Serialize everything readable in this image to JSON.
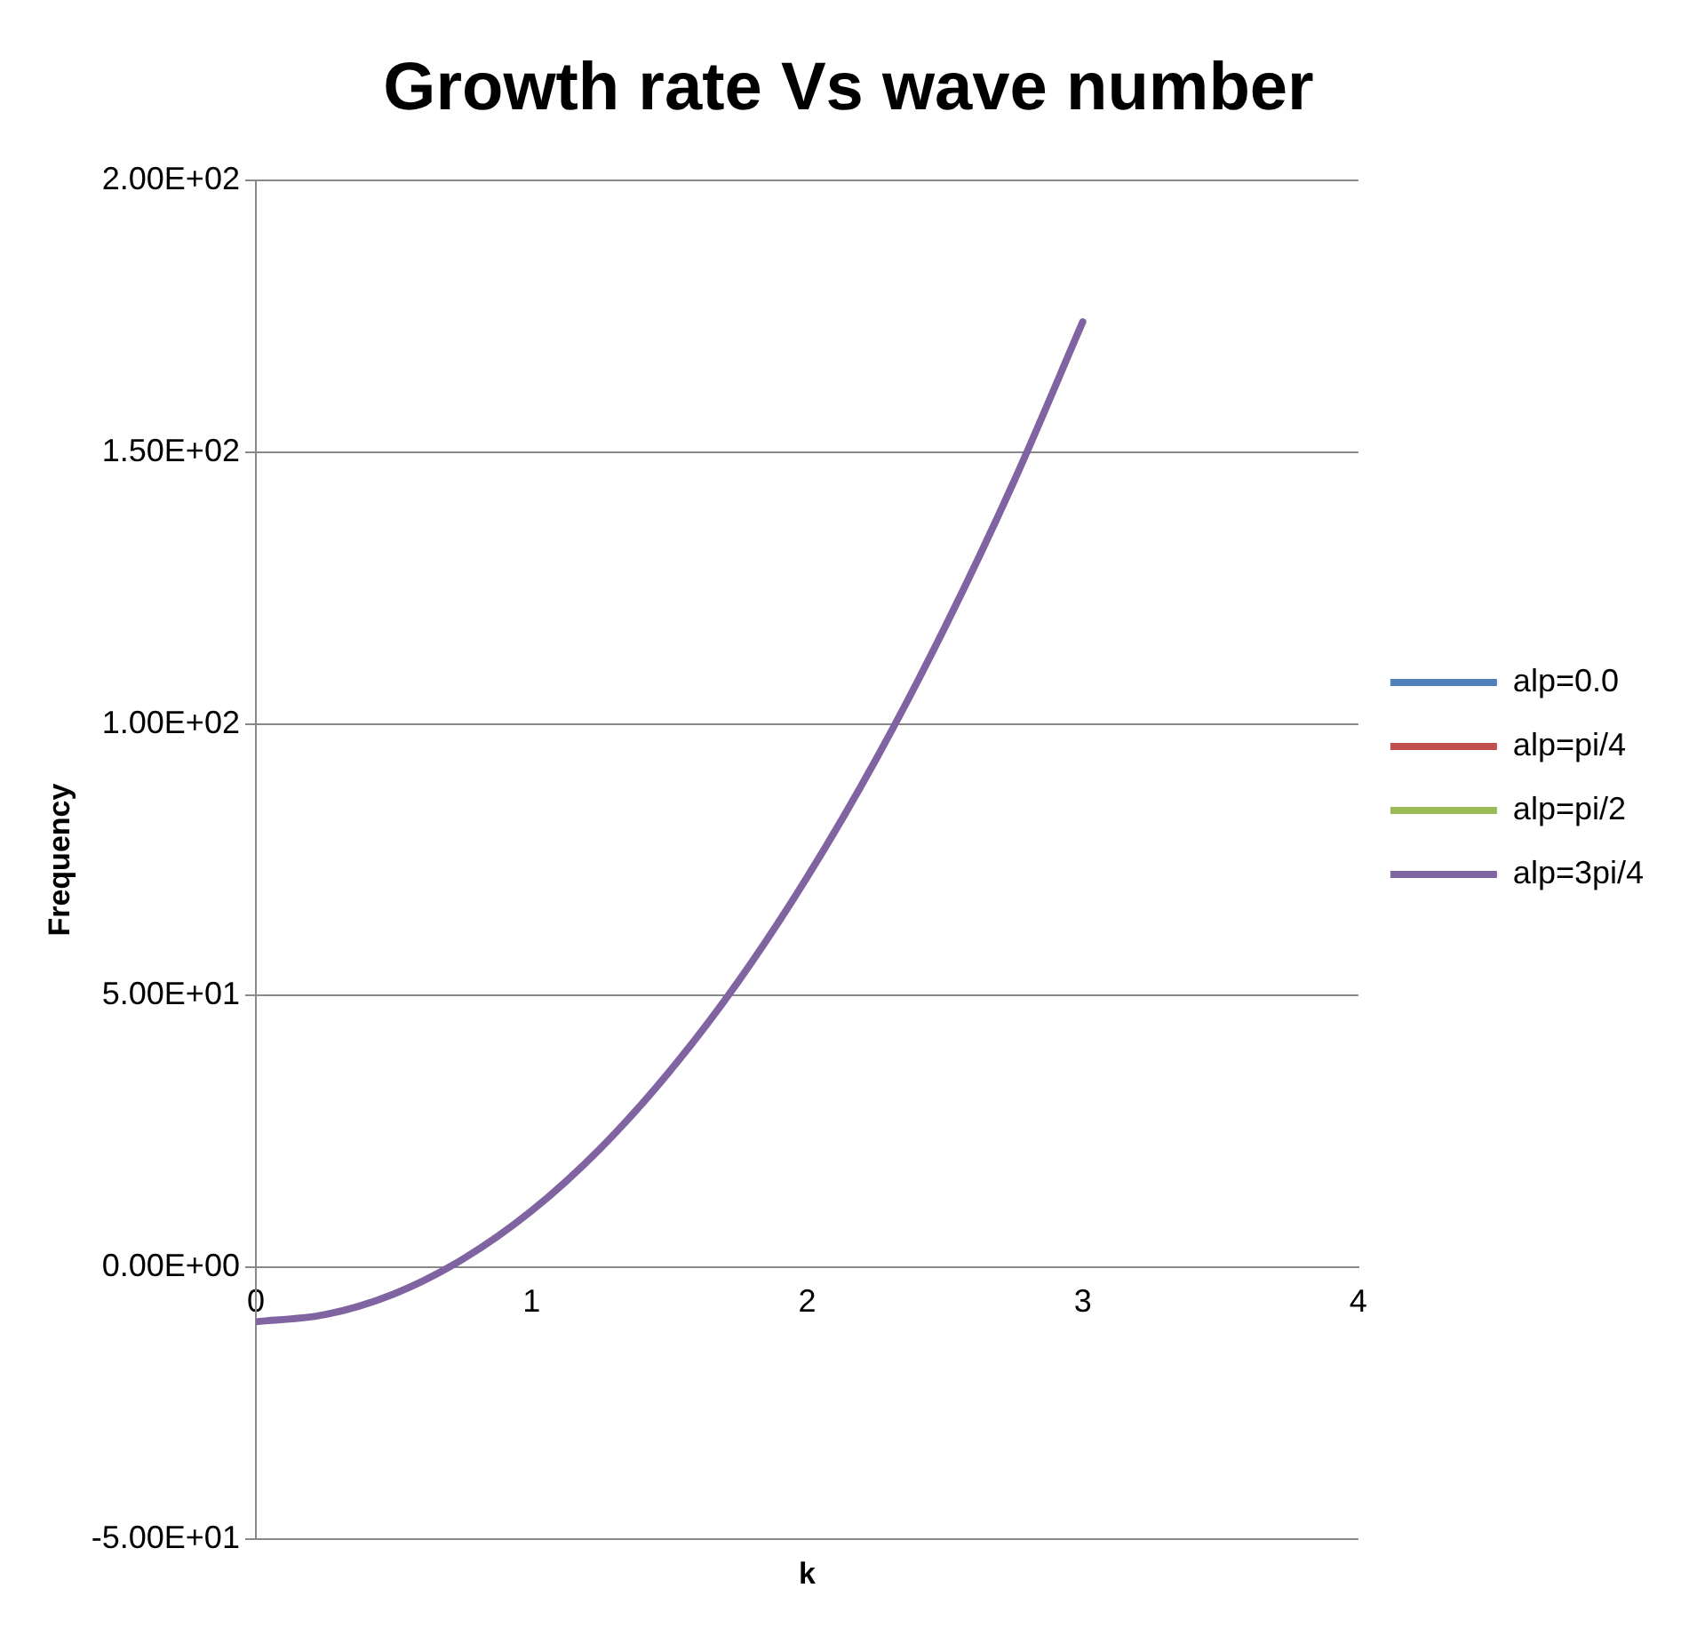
{
  "chart_data": {
    "type": "line",
    "title": "Growth rate Vs wave number",
    "xlabel": "k",
    "ylabel": "Frequency",
    "x": [
      0,
      0.25,
      0.5,
      0.75,
      1,
      1.25,
      1.5,
      1.75,
      2,
      2.25,
      2.5,
      2.75,
      3
    ],
    "series": [
      {
        "name": "alp=0.0",
        "color": "#4f81bd",
        "values": [
          null,
          null,
          null,
          null,
          null,
          null,
          null,
          null,
          null,
          null,
          null,
          null,
          null
        ]
      },
      {
        "name": "alp=pi/4",
        "color": "#c0504d",
        "values": [
          null,
          null,
          null,
          null,
          null,
          null,
          null,
          null,
          null,
          null,
          null,
          null,
          null
        ]
      },
      {
        "name": "alp=pi/2",
        "color": "#9bbb59",
        "values": [
          null,
          null,
          null,
          null,
          null,
          null,
          null,
          null,
          null,
          null,
          null,
          null,
          null
        ]
      },
      {
        "name": "alp=3pi/4",
        "color": "#8064a2",
        "values": [
          -10,
          -8.7,
          -4.9,
          1.5,
          10.4,
          21.9,
          36.0,
          52.6,
          71.8,
          93.5,
          117.8,
          144.6,
          174
        ]
      }
    ],
    "xlim": [
      0,
      4
    ],
    "xticks": [
      0,
      1,
      2,
      3,
      4
    ],
    "ylim": [
      -50,
      200
    ],
    "yticks": [
      {
        "value": -50,
        "label": "-5.00E+01"
      },
      {
        "value": 0,
        "label": "0.00E+00"
      },
      {
        "value": 50,
        "label": "5.00E+01"
      },
      {
        "value": 100,
        "label": "1.00E+02"
      },
      {
        "value": 150,
        "label": "1.50E+02"
      },
      {
        "value": 200,
        "label": "2.00E+02"
      }
    ],
    "grid": "y",
    "legend": "right",
    "marker": "none",
    "line_style": "solid"
  }
}
